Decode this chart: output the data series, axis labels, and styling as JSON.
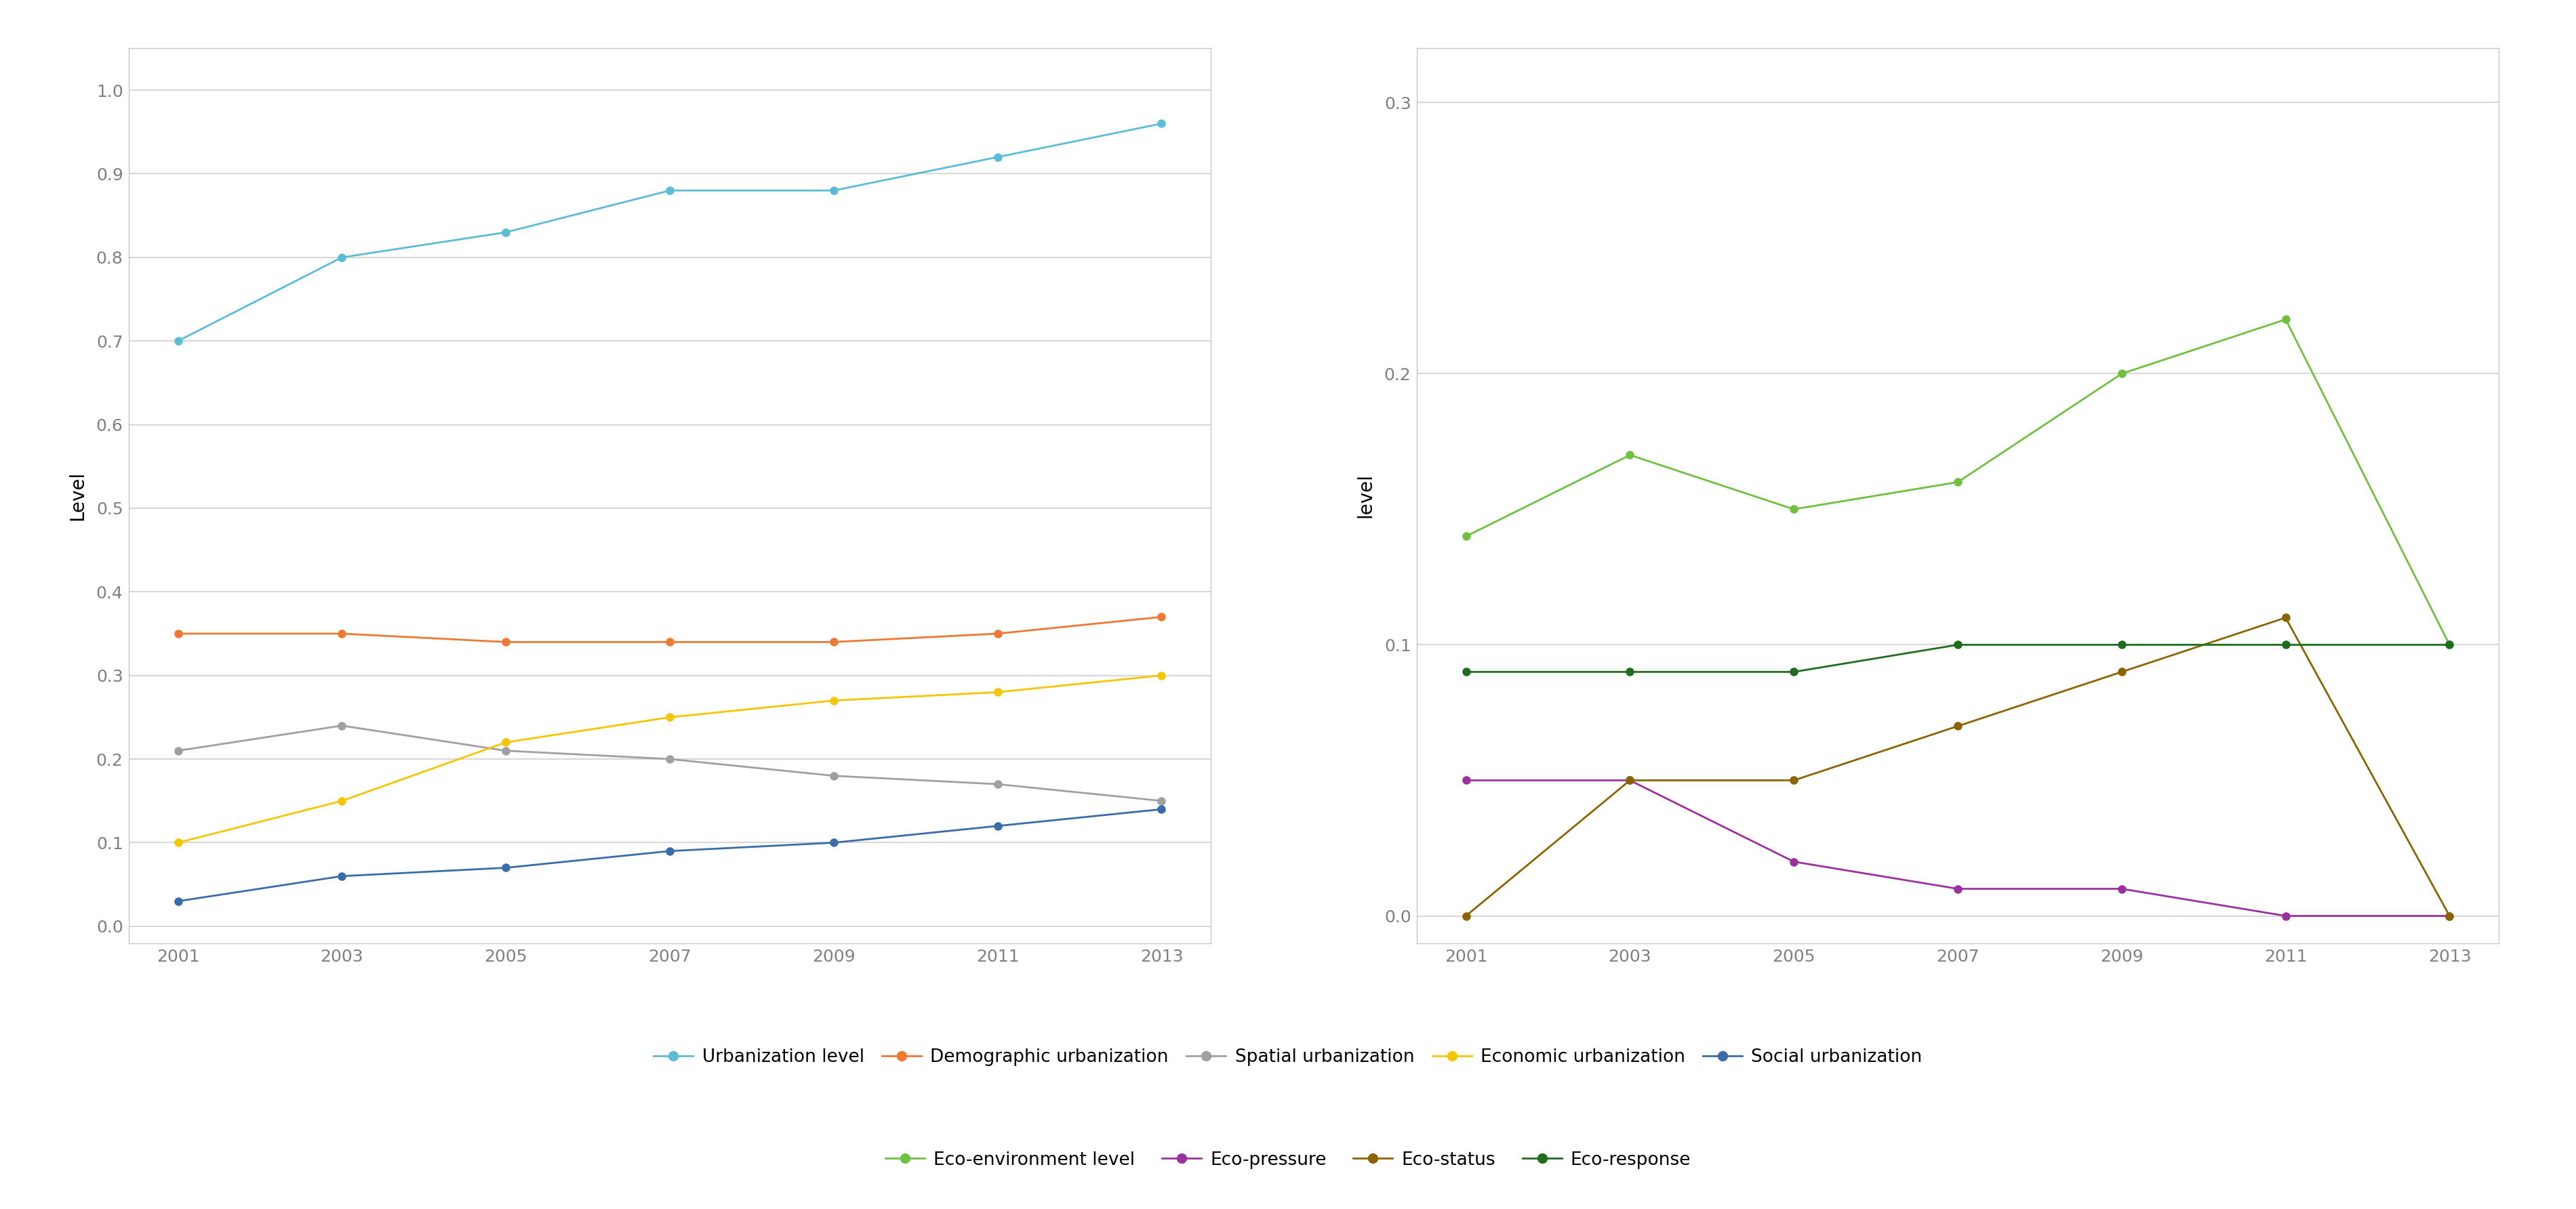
{
  "years": [
    2001,
    2003,
    2005,
    2007,
    2009,
    2011,
    2013
  ],
  "left": {
    "urbanization_level": [
      0.7,
      0.8,
      0.83,
      0.88,
      0.88,
      0.92,
      0.96
    ],
    "demographic_urbanization": [
      0.35,
      0.35,
      0.34,
      0.34,
      0.34,
      0.35,
      0.37
    ],
    "spatial_urbanization": [
      0.21,
      0.24,
      0.21,
      0.2,
      0.18,
      0.17,
      0.15
    ],
    "economic_urbanization": [
      0.1,
      0.15,
      0.22,
      0.25,
      0.27,
      0.28,
      0.3
    ],
    "social_urbanization": [
      0.03,
      0.06,
      0.07,
      0.09,
      0.1,
      0.12,
      0.14
    ]
  },
  "right": {
    "eco_environment_level": [
      0.14,
      0.17,
      0.15,
      0.16,
      0.2,
      0.22,
      0.1
    ],
    "eco_pressure": [
      0.05,
      0.05,
      0.02,
      0.01,
      0.01,
      0.0,
      0.0
    ],
    "eco_status": [
      0.0,
      0.05,
      0.05,
      0.07,
      0.09,
      0.11,
      0.0
    ],
    "eco_response": [
      0.09,
      0.09,
      0.09,
      0.1,
      0.1,
      0.1,
      0.1
    ]
  },
  "left_ylabel": "Level",
  "right_ylabel": "level",
  "left_ylim": [
    -0.02,
    1.05
  ],
  "right_ylim": [
    -0.01,
    0.32
  ],
  "left_yticks": [
    0.0,
    0.1,
    0.2,
    0.3,
    0.4,
    0.5,
    0.6,
    0.7,
    0.8,
    0.9,
    1.0
  ],
  "right_yticks": [
    0.0,
    0.1,
    0.2,
    0.3
  ],
  "colors": {
    "urbanization_level": "#5BBCD6",
    "demographic_urbanization": "#F07830",
    "spatial_urbanization": "#A0A0A0",
    "economic_urbanization": "#F5C500",
    "social_urbanization": "#3A6BAA",
    "eco_environment_level": "#70C040",
    "eco_pressure": "#9B30A0",
    "eco_status": "#8B6400",
    "eco_response": "#1E6E1E"
  },
  "legend_left": [
    {
      "label": "Urbanization level",
      "color": "#5BBCD6"
    },
    {
      "label": "Demographic urbanization",
      "color": "#F07830"
    },
    {
      "label": "Spatial urbanization",
      "color": "#A0A0A0"
    },
    {
      "label": "Economic urbanization",
      "color": "#F5C500"
    },
    {
      "label": "Social urbanization",
      "color": "#3A6BAA"
    }
  ],
  "legend_right": [
    {
      "label": "Eco-environment level",
      "color": "#70C040"
    },
    {
      "label": "Eco-pressure",
      "color": "#9B30A0"
    },
    {
      "label": "Eco-status",
      "color": "#8B6400"
    },
    {
      "label": "Eco-response",
      "color": "#1E6E1E"
    }
  ],
  "tick_fontsize": 18,
  "ylabel_fontsize": 20,
  "legend_fontsize": 19,
  "marker_size": 8,
  "line_width": 2.0,
  "grid_color": "#D8D8D8",
  "spine_color": "#C8C8C8",
  "tick_color": "#808080",
  "border_color": "#C8C8C8"
}
